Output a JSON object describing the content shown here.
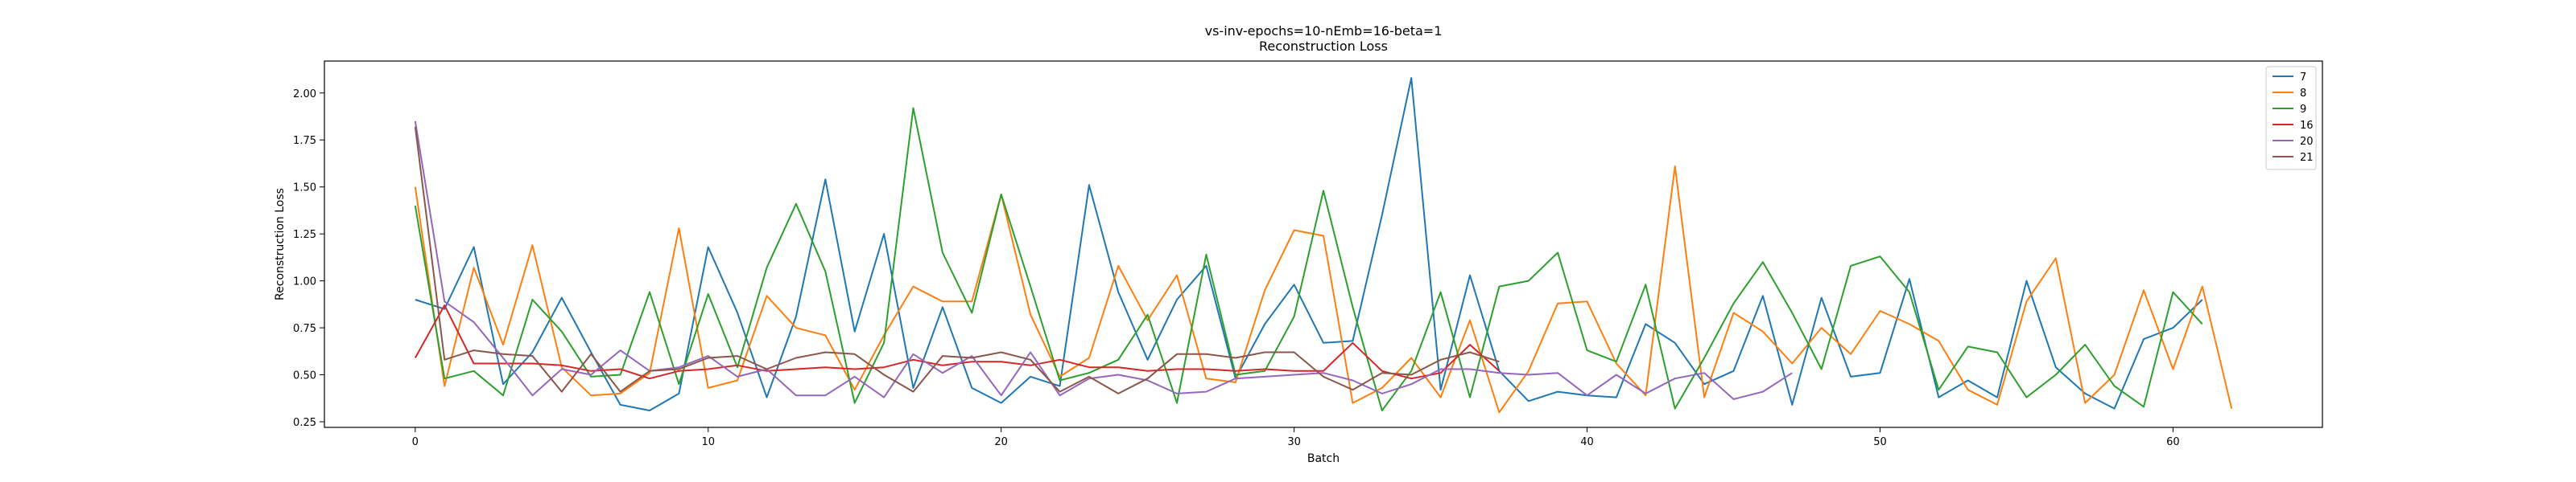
{
  "chart_data": {
    "type": "line",
    "title": "vs-inv-epochs=10-nEmb=16-beta=1",
    "subtitle": "Reconstruction Loss",
    "xlabel": "Batch",
    "ylabel": "Reconstruction Loss",
    "xlim": [
      -3.1,
      65.1
    ],
    "ylim": [
      0.22,
      2.17
    ],
    "xticks": [
      0,
      10,
      20,
      30,
      40,
      50,
      60
    ],
    "yticks": [
      0.25,
      0.5,
      0.75,
      1.0,
      1.25,
      1.5,
      1.75,
      2.0
    ],
    "ytick_labels": [
      "0.25",
      "0.50",
      "0.75",
      "1.00",
      "1.25",
      "1.50",
      "1.75",
      "2.00"
    ],
    "grid": false,
    "legend_position": "top-right",
    "series": [
      {
        "name": "7",
        "color": "#1f77b4",
        "values": [
          0.9,
          0.85,
          1.18,
          0.45,
          0.62,
          0.91,
          0.62,
          0.34,
          0.31,
          0.4,
          1.18,
          0.83,
          0.38,
          0.81,
          1.54,
          0.73,
          1.25,
          0.43,
          0.86,
          0.43,
          0.35,
          0.49,
          0.44,
          1.51,
          0.94,
          0.58,
          0.9,
          1.08,
          0.48,
          0.77,
          0.98,
          0.67,
          0.68,
          1.35,
          2.08,
          0.42,
          1.03,
          0.52,
          0.36,
          0.41,
          0.39,
          0.38,
          0.77,
          0.67,
          0.45,
          0.52,
          0.92,
          0.34,
          0.91,
          0.49,
          0.51,
          1.01,
          0.38,
          0.47,
          0.38,
          1.0,
          0.54,
          0.4,
          0.32,
          0.69,
          0.75,
          0.9
        ]
      },
      {
        "name": "8",
        "color": "#ff7f0e",
        "values": [
          1.5,
          0.44,
          1.07,
          0.66,
          1.19,
          0.54,
          0.39,
          0.4,
          0.51,
          1.28,
          0.43,
          0.47,
          0.92,
          0.75,
          0.71,
          0.42,
          0.71,
          0.97,
          0.89,
          0.89,
          1.46,
          0.82,
          0.49,
          0.59,
          1.08,
          0.79,
          1.03,
          0.48,
          0.46,
          0.95,
          1.27,
          1.24,
          0.35,
          0.43,
          0.59,
          0.38,
          0.79,
          0.3,
          0.52,
          0.88,
          0.89,
          0.56,
          0.39,
          1.61,
          0.38,
          0.83,
          0.73,
          0.56,
          0.75,
          0.61,
          0.84,
          0.77,
          0.68,
          0.42,
          0.34,
          0.89,
          1.12,
          0.35,
          0.5,
          0.95,
          0.53,
          0.97,
          0.32
        ]
      },
      {
        "name": "9",
        "color": "#2ca02c",
        "values": [
          1.4,
          0.48,
          0.52,
          0.39,
          0.9,
          0.73,
          0.49,
          0.5,
          0.94,
          0.45,
          0.93,
          0.54,
          1.07,
          1.41,
          1.05,
          0.35,
          0.67,
          1.92,
          1.15,
          0.83,
          1.46,
          0.97,
          0.47,
          0.51,
          0.58,
          0.82,
          0.35,
          1.14,
          0.5,
          0.52,
          0.81,
          1.48,
          0.86,
          0.31,
          0.52,
          0.94,
          0.38,
          0.97,
          1.0,
          1.15,
          0.63,
          0.57,
          0.98,
          0.32,
          0.59,
          0.88,
          1.1,
          0.83,
          0.53,
          1.08,
          1.13,
          0.94,
          0.42,
          0.65,
          0.62,
          0.38,
          0.5,
          0.66,
          0.44,
          0.33,
          0.94,
          0.77
        ]
      },
      {
        "name": "16",
        "color": "#d62728",
        "values": [
          0.59,
          0.87,
          0.56,
          0.56,
          0.56,
          0.55,
          0.52,
          0.53,
          0.48,
          0.52,
          0.53,
          0.55,
          0.52,
          0.53,
          0.54,
          0.53,
          0.54,
          0.58,
          0.55,
          0.57,
          0.57,
          0.55,
          0.58,
          0.54,
          0.54,
          0.52,
          0.53,
          0.53,
          0.52,
          0.53,
          0.52,
          0.52,
          0.67,
          0.52,
          0.48,
          0.51,
          0.66,
          0.52
        ]
      },
      {
        "name": "20",
        "color": "#9467bd",
        "values": [
          1.85,
          0.89,
          0.78,
          0.59,
          0.39,
          0.53,
          0.5,
          0.63,
          0.52,
          0.54,
          0.6,
          0.49,
          0.53,
          0.39,
          0.39,
          0.49,
          0.38,
          0.61,
          0.51,
          0.6,
          0.39,
          0.62,
          0.39,
          0.48,
          0.5,
          0.47,
          0.4,
          0.41,
          0.48,
          0.49,
          0.5,
          0.51,
          0.47,
          0.4,
          0.45,
          0.53,
          0.53,
          0.51,
          0.5,
          0.51,
          0.39,
          0.5,
          0.4,
          0.48,
          0.51,
          0.37,
          0.41,
          0.51
        ]
      },
      {
        "name": "21",
        "color": "#8c564b",
        "values": [
          1.82,
          0.58,
          0.63,
          0.61,
          0.6,
          0.41,
          0.61,
          0.41,
          0.52,
          0.53,
          0.59,
          0.6,
          0.53,
          0.59,
          0.62,
          0.61,
          0.5,
          0.41,
          0.6,
          0.59,
          0.62,
          0.58,
          0.41,
          0.49,
          0.4,
          0.48,
          0.61,
          0.61,
          0.59,
          0.62,
          0.62,
          0.49,
          0.42,
          0.51,
          0.5,
          0.58,
          0.62,
          0.57
        ]
      }
    ]
  }
}
